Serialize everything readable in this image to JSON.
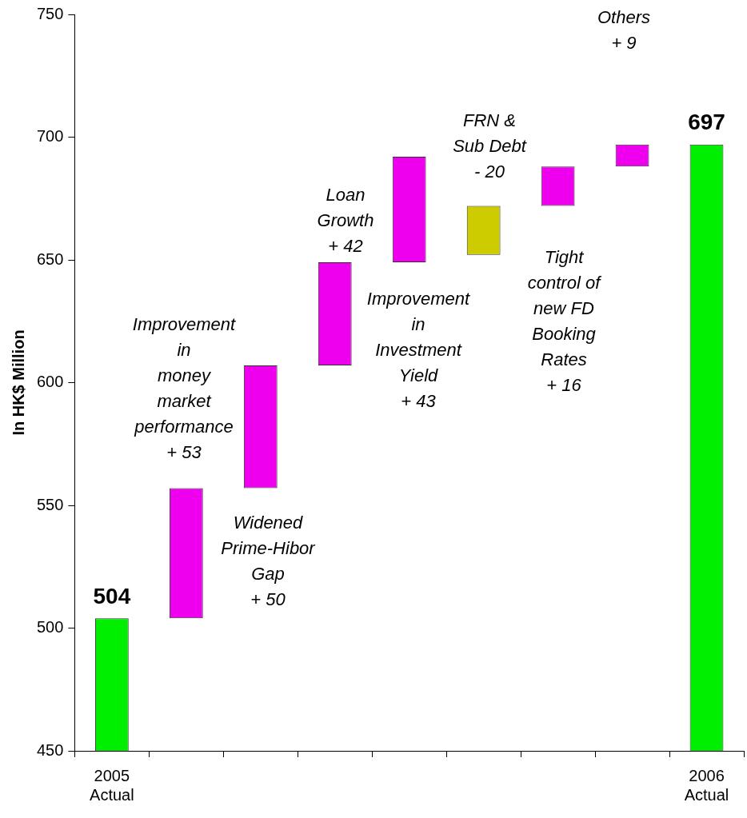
{
  "chart_data": {
    "type": "bar",
    "ylabel": "In HK$ Million",
    "categories": [
      "2005\nActual",
      null,
      null,
      null,
      null,
      null,
      null,
      null,
      "2006\nActual"
    ],
    "values": [
      504,
      53,
      50,
      42,
      43,
      -20,
      16,
      9,
      697
    ],
    "base": [
      null,
      504,
      557,
      607,
      649,
      672,
      672,
      688,
      null
    ],
    "colors": [
      "#00ee00",
      "#ee00ee",
      "#ee00ee",
      "#ee00ee",
      "#ee00ee",
      "#cccc00",
      "#ee00ee",
      "#ee00ee",
      "#00ee00"
    ],
    "value_labels": [
      "504",
      null,
      null,
      null,
      null,
      null,
      null,
      null,
      "697"
    ],
    "ylim": [
      450,
      750
    ],
    "yticks": [
      450,
      500,
      550,
      600,
      650,
      700,
      750
    ],
    "legend": false,
    "annotations": [
      "Improvement\nin\nmoney\nmarket\nperformance\n+ 53",
      "Widened\nPrime-Hibor\nGap\n+ 50",
      "Loan\nGrowth\n+ 42",
      "Improvement\nin\nInvestment\nYield\n+ 43",
      "FRN &\nSub Debt\n- 20",
      "Tight\ncontrol of\nnew FD\nBooking\nRates\n+ 16",
      "Others\n+ 9"
    ]
  }
}
